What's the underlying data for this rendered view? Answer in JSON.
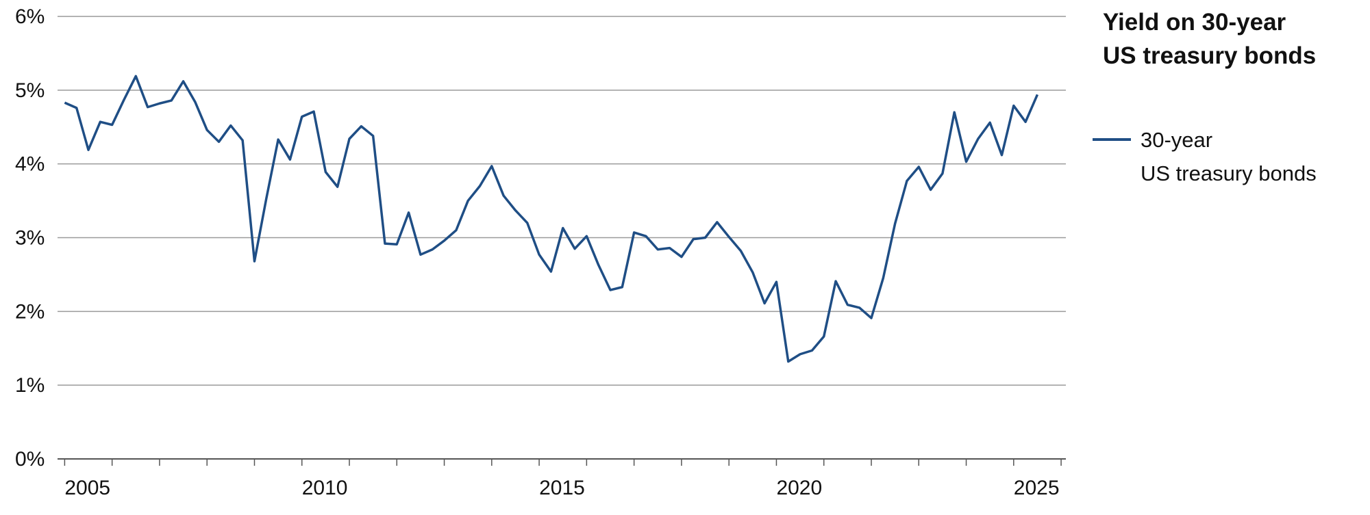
{
  "chart_data": {
    "type": "line",
    "title": "Yield on 30-year\nUS treasury bonds",
    "x": [
      2005,
      2005.25,
      2005.5,
      2005.75,
      2006,
      2006.25,
      2006.5,
      2006.75,
      2007,
      2007.25,
      2007.5,
      2007.75,
      2008,
      2008.25,
      2008.5,
      2008.75,
      2009,
      2009.25,
      2009.5,
      2009.75,
      2010,
      2010.25,
      2010.5,
      2010.75,
      2011,
      2011.25,
      2011.5,
      2011.75,
      2012,
      2012.25,
      2012.5,
      2012.75,
      2013,
      2013.25,
      2013.5,
      2013.75,
      2014,
      2014.25,
      2014.5,
      2014.75,
      2015,
      2015.25,
      2015.5,
      2015.75,
      2016,
      2016.25,
      2016.5,
      2016.75,
      2017,
      2017.25,
      2017.5,
      2017.75,
      2018,
      2018.25,
      2018.5,
      2018.75,
      2019,
      2019.25,
      2019.5,
      2019.75,
      2020,
      2020.25,
      2020.5,
      2020.75,
      2021,
      2021.25,
      2021.5,
      2021.75,
      2022,
      2022.25,
      2022.5,
      2022.75,
      2023,
      2023.25,
      2023.5,
      2023.75,
      2024,
      2024.25,
      2024.5,
      2024.75,
      2025,
      2025.25,
      2025.5
    ],
    "series": [
      {
        "name": "30-year\nUS treasury bonds",
        "color": "#1f4e85",
        "values": [
          4.83,
          4.76,
          4.19,
          4.57,
          4.53,
          4.87,
          5.19,
          4.77,
          4.82,
          4.86,
          5.12,
          4.84,
          4.46,
          4.3,
          4.52,
          4.32,
          2.68,
          3.53,
          4.33,
          4.06,
          4.64,
          4.71,
          3.89,
          3.69,
          4.34,
          4.51,
          4.38,
          2.92,
          2.91,
          3.34,
          2.77,
          2.84,
          2.96,
          3.1,
          3.5,
          3.7,
          3.97,
          3.57,
          3.37,
          3.2,
          2.77,
          2.54,
          3.13,
          2.85,
          3.02,
          2.63,
          2.29,
          2.33,
          3.07,
          3.02,
          2.84,
          2.86,
          2.74,
          2.98,
          3.0,
          3.21,
          3.01,
          2.82,
          2.53,
          2.11,
          2.4,
          1.32,
          1.42,
          1.47,
          1.66,
          2.41,
          2.09,
          2.05,
          1.91,
          2.45,
          3.19,
          3.77,
          3.96,
          3.65,
          3.87,
          4.7,
          4.03,
          4.34,
          4.56,
          4.12,
          4.79,
          4.57,
          4.94
        ]
      }
    ],
    "xlim": [
      2004.85,
      2026.1
    ],
    "xticks": [
      2005,
      2010,
      2015,
      2020,
      2025
    ],
    "xminorticks": [
      2005,
      2006,
      2007,
      2008,
      2009,
      2010,
      2011,
      2012,
      2013,
      2014,
      2015,
      2016,
      2017,
      2018,
      2019,
      2020,
      2021,
      2022,
      2023,
      2024,
      2025,
      2026
    ],
    "ylim": [
      0,
      6
    ],
    "yticks": [
      {
        "value": 0,
        "label": "0%"
      },
      {
        "value": 1,
        "label": "1%"
      },
      {
        "value": 2,
        "label": "2%"
      },
      {
        "value": 3,
        "label": "3%"
      },
      {
        "value": 4,
        "label": "4%"
      },
      {
        "value": 5,
        "label": "5%"
      },
      {
        "value": 6,
        "label": "6%"
      }
    ],
    "grid": true
  }
}
